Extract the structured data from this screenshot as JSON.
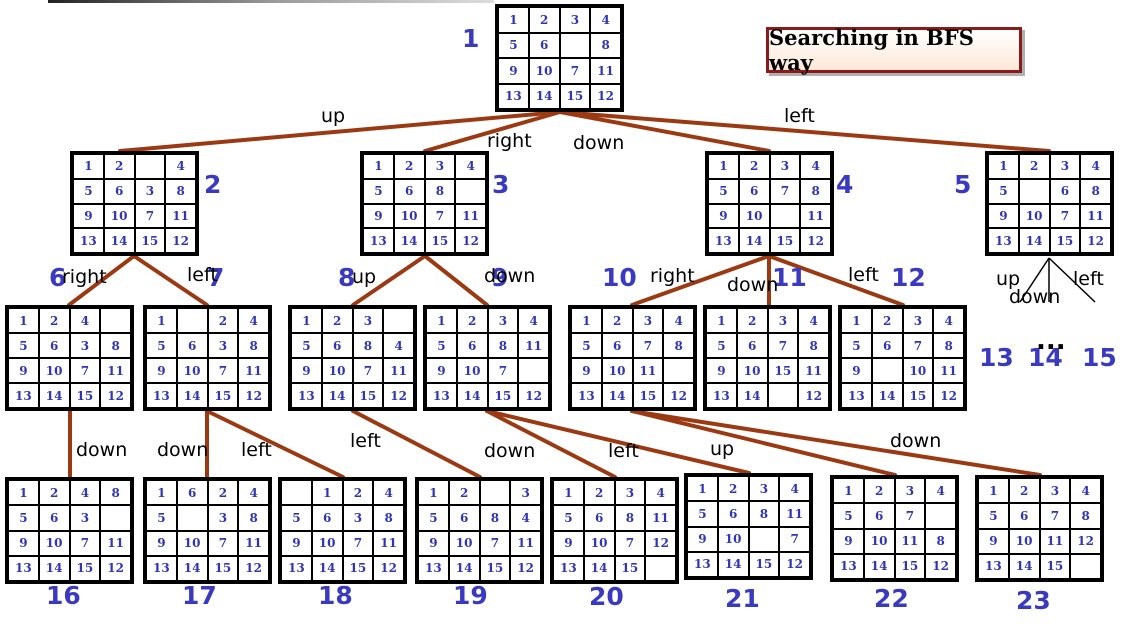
{
  "title": "Searching in BFS way",
  "nodes": [
    {
      "id": "1",
      "tiles": [
        "1",
        "2",
        "3",
        "4",
        "5",
        "6",
        "",
        "8",
        "9",
        "10",
        "7",
        "11",
        "13",
        "14",
        "15",
        "12"
      ]
    },
    {
      "id": "2",
      "tiles": [
        "1",
        "2",
        "",
        "4",
        "5",
        "6",
        "3",
        "8",
        "9",
        "10",
        "7",
        "11",
        "13",
        "14",
        "15",
        "12"
      ]
    },
    {
      "id": "3",
      "tiles": [
        "1",
        "2",
        "3",
        "4",
        "5",
        "6",
        "8",
        "",
        "9",
        "10",
        "7",
        "11",
        "13",
        "14",
        "15",
        "12"
      ]
    },
    {
      "id": "4",
      "tiles": [
        "1",
        "2",
        "3",
        "4",
        "5",
        "6",
        "7",
        "8",
        "9",
        "10",
        "",
        "11",
        "13",
        "14",
        "15",
        "12"
      ]
    },
    {
      "id": "5",
      "tiles": [
        "1",
        "2",
        "3",
        "4",
        "5",
        "",
        "6",
        "8",
        "9",
        "10",
        "7",
        "11",
        "13",
        "14",
        "15",
        "12"
      ]
    },
    {
      "id": "6",
      "tiles": [
        "1",
        "2",
        "4",
        "",
        "5",
        "6",
        "3",
        "8",
        "9",
        "10",
        "7",
        "11",
        "13",
        "14",
        "15",
        "12"
      ]
    },
    {
      "id": "7",
      "tiles": [
        "1",
        "",
        "2",
        "4",
        "5",
        "6",
        "3",
        "8",
        "9",
        "10",
        "7",
        "11",
        "13",
        "14",
        "15",
        "12"
      ]
    },
    {
      "id": "8",
      "tiles": [
        "1",
        "2",
        "3",
        "",
        "5",
        "6",
        "8",
        "4",
        "9",
        "10",
        "7",
        "11",
        "13",
        "14",
        "15",
        "12"
      ]
    },
    {
      "id": "9",
      "tiles": [
        "1",
        "2",
        "3",
        "4",
        "5",
        "6",
        "8",
        "11",
        "9",
        "10",
        "7",
        "",
        "13",
        "14",
        "15",
        "12"
      ]
    },
    {
      "id": "10",
      "tiles": [
        "1",
        "2",
        "3",
        "4",
        "5",
        "6",
        "7",
        "8",
        "9",
        "10",
        "11",
        "",
        "13",
        "14",
        "15",
        "12"
      ]
    },
    {
      "id": "11",
      "tiles": [
        "1",
        "2",
        "3",
        "4",
        "5",
        "6",
        "7",
        "8",
        "9",
        "10",
        "15",
        "11",
        "13",
        "14",
        "",
        "12"
      ]
    },
    {
      "id": "12",
      "tiles": [
        "1",
        "2",
        "3",
        "4",
        "5",
        "6",
        "7",
        "8",
        "9",
        "",
        "10",
        "11",
        "13",
        "14",
        "15",
        "12"
      ]
    },
    {
      "id": "16",
      "tiles": [
        "1",
        "2",
        "4",
        "8",
        "5",
        "6",
        "3",
        "",
        "9",
        "10",
        "7",
        "11",
        "13",
        "14",
        "15",
        "12"
      ]
    },
    {
      "id": "17",
      "tiles": [
        "1",
        "6",
        "2",
        "4",
        "5",
        "",
        "3",
        "8",
        "9",
        "10",
        "7",
        "11",
        "13",
        "14",
        "15",
        "12"
      ]
    },
    {
      "id": "18",
      "tiles": [
        "",
        "1",
        "2",
        "4",
        "5",
        "6",
        "3",
        "8",
        "9",
        "10",
        "7",
        "11",
        "13",
        "14",
        "15",
        "12"
      ]
    },
    {
      "id": "19",
      "tiles": [
        "1",
        "2",
        "",
        "3",
        "5",
        "6",
        "8",
        "4",
        "9",
        "10",
        "7",
        "11",
        "13",
        "14",
        "15",
        "12"
      ]
    },
    {
      "id": "20",
      "tiles": [
        "1",
        "2",
        "3",
        "4",
        "5",
        "6",
        "8",
        "11",
        "9",
        "10",
        "7",
        "12",
        "13",
        "14",
        "15",
        ""
      ]
    },
    {
      "id": "21",
      "tiles": [
        "1",
        "2",
        "3",
        "4",
        "5",
        "6",
        "8",
        "11",
        "9",
        "10",
        "",
        "7",
        "13",
        "14",
        "15",
        "12"
      ]
    },
    {
      "id": "22",
      "tiles": [
        "1",
        "2",
        "3",
        "4",
        "5",
        "6",
        "7",
        "",
        "9",
        "10",
        "11",
        "8",
        "13",
        "14",
        "15",
        "12"
      ]
    },
    {
      "id": "23",
      "tiles": [
        "1",
        "2",
        "3",
        "4",
        "5",
        "6",
        "7",
        "8",
        "9",
        "10",
        "11",
        "12",
        "13",
        "14",
        "15",
        ""
      ]
    }
  ],
  "unexpanded_labels": [
    "13",
    "14",
    "15"
  ],
  "ellipsis": "...",
  "moves": {
    "n1_up": "up",
    "n1_right": "right",
    "n1_down": "down",
    "n1_left": "left",
    "n2_right": "right",
    "n2_left": "left",
    "n3_up": "up",
    "n3_down": "down",
    "n4_right": "right",
    "n4_down": "down",
    "n4_left": "left",
    "n5_up": "up",
    "n5_down": "down",
    "n5_left": "left",
    "n6_down": "down",
    "n7_down": "down",
    "n7_left": "left",
    "n8_left": "left",
    "n9_down": "down",
    "n9_left": "left",
    "n9_up": "up",
    "n10_down": "down"
  },
  "colors": {
    "edge": "#9b3a12",
    "tile_text": "#2f35b4",
    "node_label": "#3a3ac0",
    "title_border": "#8b1a1a"
  }
}
